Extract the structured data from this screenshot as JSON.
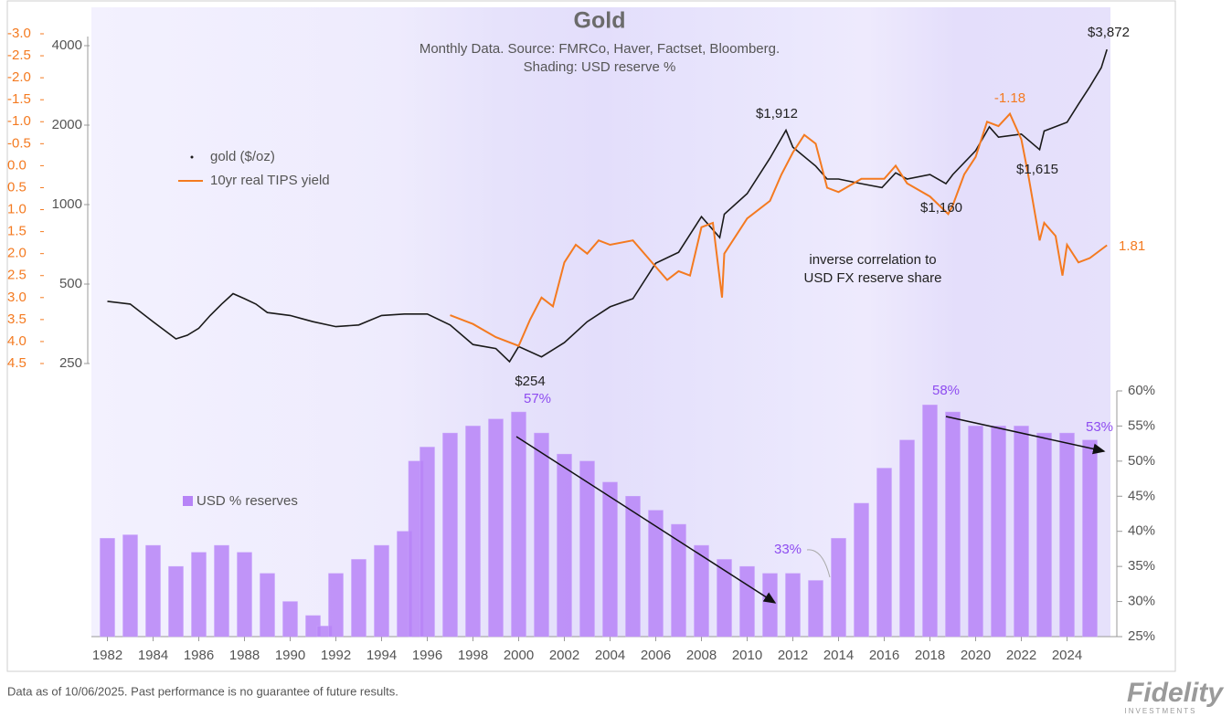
{
  "chart_data": [
    {
      "type": "line",
      "title": "Gold",
      "subtitle": [
        "Monthly Data.  Source: FMRCo, Haver, Factset, Bloomberg.",
        "Shading: USD reserve %"
      ],
      "annotations": [
        "$3,872",
        "$1,912",
        "$254",
        "$1,160",
        "$1,615",
        "-1.18",
        "1.81",
        "inverse correlation to",
        "USD FX reserve share"
      ],
      "xlim": [
        1981.3,
        2025.9
      ],
      "log_scale": true,
      "ylim": [
        250,
        4000
      ],
      "yticks": [
        250,
        500,
        1000,
        2000,
        4000
      ],
      "y2lim": [
        4.5,
        -3
      ],
      "y2ticks": [
        {
          "value": -3,
          "label": "-3.0"
        },
        -2.5,
        {
          "value": -2,
          "label": "-2.0"
        },
        -1.5,
        {
          "value": -1,
          "label": "-1.0"
        },
        -0.5,
        {
          "value": 0,
          "label": "0.0"
        },
        0.5,
        {
          "value": 1,
          "label": "1.0"
        },
        1.5,
        {
          "value": 2,
          "label": "2.0"
        },
        2.5,
        {
          "value": 3,
          "label": "3.0"
        },
        3.5,
        {
          "value": 4,
          "label": "4.0"
        },
        4.5
      ],
      "series": [
        {
          "name": "gold ($/oz)",
          "color": "#1a1a1a",
          "x": [
            1982,
            1983,
            1984,
            1985,
            1985.5,
            1986,
            1986.5,
            1987,
            1987.5,
            1988,
            1988.5,
            1989,
            1990,
            1990.5,
            1991,
            1992,
            1993,
            1994,
            1995,
            1996,
            1997,
            1998,
            1999,
            1999.6,
            2000,
            2001,
            2002,
            2003,
            2004,
            2005,
            2006,
            2007,
            2008,
            2008.8,
            2009,
            2010,
            2011,
            2011.7,
            2012,
            2013,
            2013.5,
            2014,
            2015,
            2015.9,
            2016.5,
            2017,
            2018,
            2018.7,
            2019,
            2020,
            2020.6,
            2021,
            2022,
            2022.8,
            2023,
            2024,
            2024.5,
            2025,
            2025.5,
            2025.75
          ],
          "values": [
            430,
            420,
            360,
            310,
            320,
            340,
            380,
            420,
            460,
            440,
            420,
            390,
            380,
            370,
            360,
            345,
            350,
            380,
            385,
            385,
            350,
            295,
            285,
            254,
            290,
            265,
            300,
            360,
            410,
            440,
            600,
            660,
            900,
            750,
            920,
            1100,
            1500,
            1912,
            1650,
            1400,
            1250,
            1250,
            1200,
            1160,
            1320,
            1250,
            1300,
            1200,
            1300,
            1600,
            1970,
            1800,
            1850,
            1615,
            1900,
            2050,
            2400,
            2800,
            3300,
            3872
          ]
        },
        {
          "name": "10yr real TIPS yield",
          "color": "#f47a20",
          "axis": "y2",
          "x": [
            1997,
            1998,
            1999,
            2000,
            2000.5,
            2001,
            2001.5,
            2002,
            2002.5,
            2003,
            2003.5,
            2004,
            2005,
            2006,
            2006.5,
            2007,
            2007.5,
            2008,
            2008.5,
            2008.9,
            2009,
            2010,
            2011,
            2011.5,
            2012,
            2012.5,
            2013,
            2013.5,
            2014,
            2015,
            2016,
            2016.5,
            2017,
            2018,
            2018.8,
            2019,
            2019.5,
            2020,
            2020.5,
            2021,
            2021.5,
            2022,
            2022.3,
            2022.8,
            2023,
            2023.5,
            2023.8,
            2024,
            2024.5,
            2025,
            2025.75
          ],
          "values": [
            3.4,
            3.6,
            3.9,
            4.1,
            3.5,
            3.0,
            3.2,
            2.2,
            1.8,
            2.0,
            1.7,
            1.8,
            1.7,
            2.3,
            2.6,
            2.4,
            2.5,
            1.4,
            1.3,
            3.0,
            2.0,
            1.2,
            0.8,
            0.2,
            -0.3,
            -0.7,
            -0.5,
            0.5,
            0.6,
            0.3,
            0.3,
            0.0,
            0.4,
            0.7,
            1.1,
            0.9,
            0.2,
            -0.2,
            -1.0,
            -0.9,
            -1.18,
            -0.6,
            0.2,
            1.7,
            1.3,
            1.6,
            2.5,
            1.8,
            2.2,
            2.1,
            1.81
          ]
        }
      ]
    },
    {
      "type": "bar",
      "annotations": [
        "57%",
        "58%",
        "33%",
        "53%"
      ],
      "xlim": [
        1981.3,
        2025.9
      ],
      "xticks": [
        1982,
        1984,
        1986,
        1988,
        1990,
        1992,
        1994,
        1996,
        1998,
        2000,
        2002,
        2004,
        2006,
        2008,
        2010,
        2012,
        2014,
        2016,
        2018,
        2020,
        2022,
        2024
      ],
      "ylim": [
        25,
        60
      ],
      "yticks": [
        {
          "value": 25,
          "label": "25%"
        },
        {
          "value": 30,
          "label": "30%"
        },
        {
          "value": 35,
          "label": "35%"
        },
        {
          "value": 40,
          "label": "40%"
        },
        {
          "value": 45,
          "label": "45%"
        },
        {
          "value": 50,
          "label": "50%"
        },
        {
          "value": 55,
          "label": "55%"
        },
        {
          "value": 60,
          "label": "60%"
        }
      ],
      "series": [
        {
          "name": "USD % reserves",
          "color": "#b784f7",
          "x": [
            1982,
            1983,
            1984,
            1985,
            1986,
            1987,
            1988,
            1989,
            1990,
            1991,
            1991.5,
            1992,
            1993,
            1994,
            1995,
            1995.5,
            1996,
            1997,
            1998,
            1999,
            2000,
            2001,
            2002,
            2003,
            2004,
            2005,
            2006,
            2007,
            2008,
            2009,
            2010,
            2011,
            2012,
            2013,
            2014,
            2015,
            2016,
            2017,
            2018,
            2019,
            2020,
            2021,
            2022,
            2023,
            2024,
            2025
          ],
          "values": [
            39,
            39.5,
            38,
            35,
            37,
            38,
            37,
            34,
            30,
            28,
            26.5,
            34,
            36,
            38,
            40,
            50,
            52,
            54,
            55,
            56,
            57,
            54,
            51,
            50,
            47,
            45,
            43,
            41,
            38,
            36,
            35,
            34,
            34,
            33,
            39,
            44,
            49,
            53,
            58,
            57,
            55,
            55,
            55,
            54,
            54,
            53
          ]
        }
      ]
    }
  ],
  "footer": {
    "note": "Data as of 10/06/2025. Past performance is no guarantee of future results.",
    "logo": "Fidelity",
    "logo_sub": "INVESTMENTS"
  }
}
